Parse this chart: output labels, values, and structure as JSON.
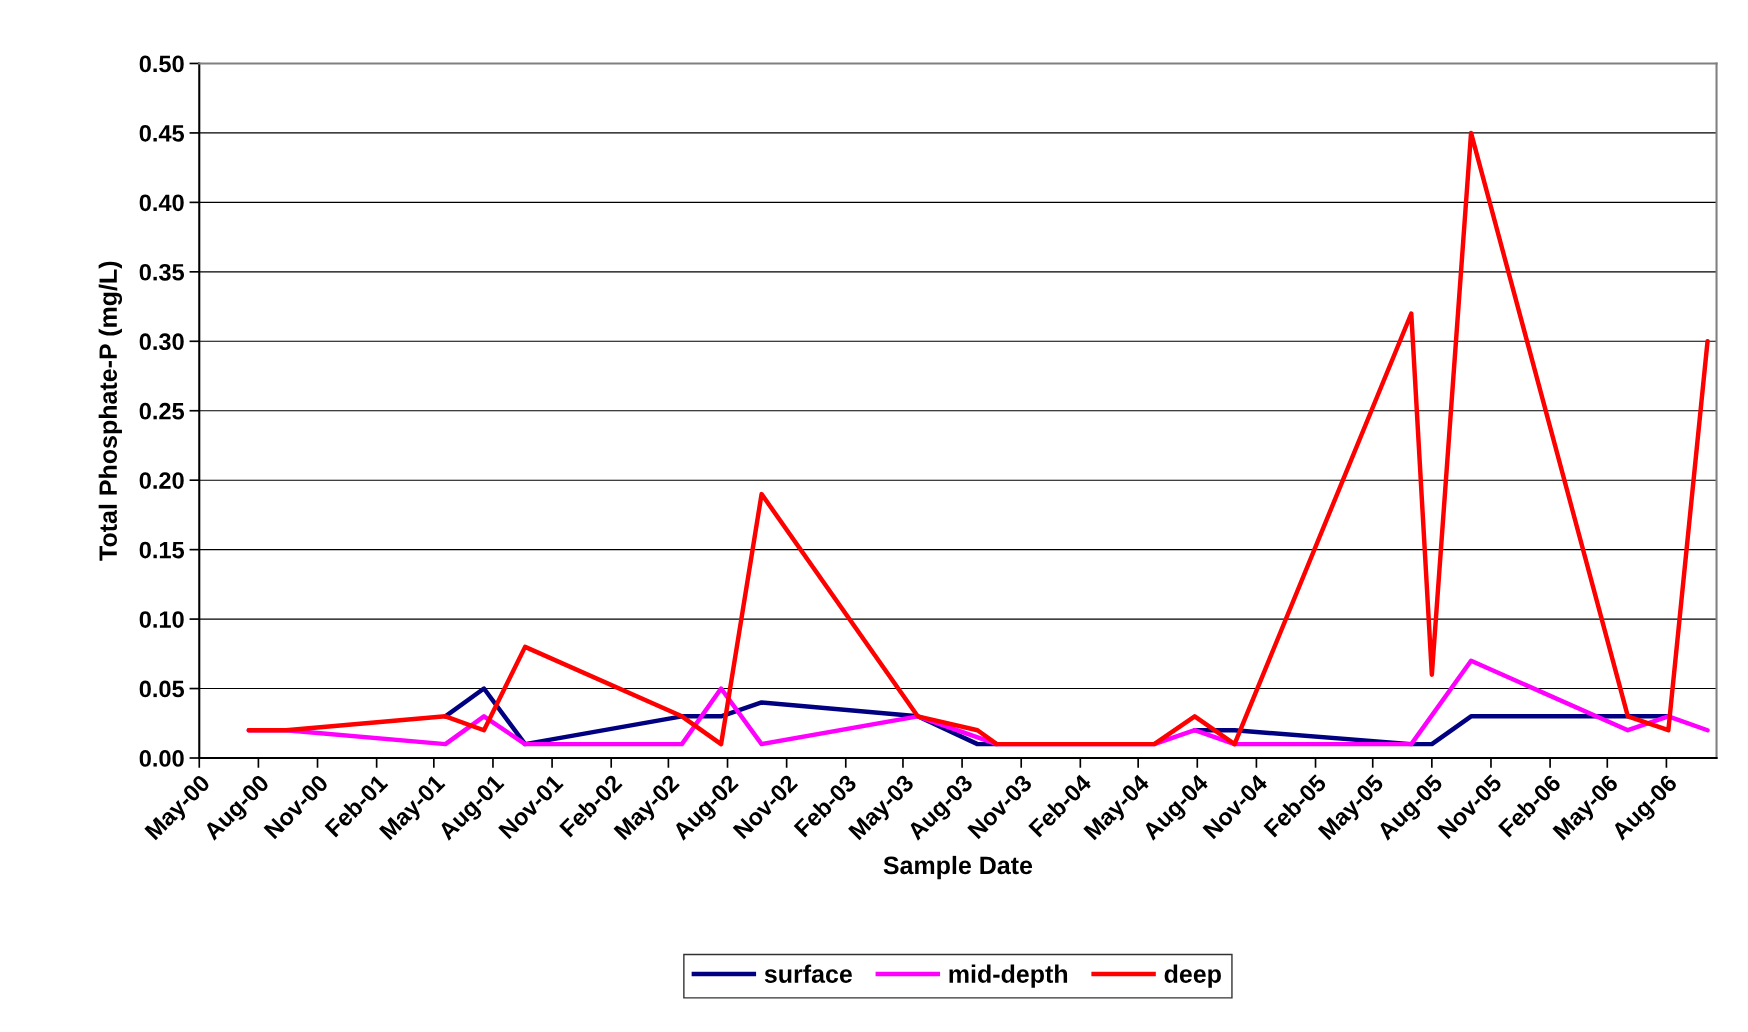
{
  "chart_data": {
    "type": "line",
    "xlabel": "Sample Date",
    "ylabel": "Total Phosphate-P (mg/L)",
    "xlim": [
      "2000-05-01",
      "2006-10-18"
    ],
    "xticks": [
      {
        "value": "2000-05-01",
        "label": "May-00"
      },
      {
        "value": "2000-08-01",
        "label": "Aug-00"
      },
      {
        "value": "2000-11-01",
        "label": "Nov-00"
      },
      {
        "value": "2001-02-01",
        "label": "Feb-01"
      },
      {
        "value": "2001-05-01",
        "label": "May-01"
      },
      {
        "value": "2001-08-01",
        "label": "Aug-01"
      },
      {
        "value": "2001-11-01",
        "label": "Nov-01"
      },
      {
        "value": "2002-02-01",
        "label": "Feb-02"
      },
      {
        "value": "2002-05-01",
        "label": "May-02"
      },
      {
        "value": "2002-08-01",
        "label": "Aug-02"
      },
      {
        "value": "2002-11-01",
        "label": "Nov-02"
      },
      {
        "value": "2003-02-01",
        "label": "Feb-03"
      },
      {
        "value": "2003-05-01",
        "label": "May-03"
      },
      {
        "value": "2003-08-01",
        "label": "Aug-03"
      },
      {
        "value": "2003-11-01",
        "label": "Nov-03"
      },
      {
        "value": "2004-02-01",
        "label": "Feb-04"
      },
      {
        "value": "2004-05-01",
        "label": "May-04"
      },
      {
        "value": "2004-08-01",
        "label": "Aug-04"
      },
      {
        "value": "2004-11-01",
        "label": "Nov-04"
      },
      {
        "value": "2005-02-01",
        "label": "Feb-05"
      },
      {
        "value": "2005-05-01",
        "label": "May-05"
      },
      {
        "value": "2005-08-01",
        "label": "Aug-05"
      },
      {
        "value": "2005-11-01",
        "label": "Nov-05"
      },
      {
        "value": "2006-02-01",
        "label": "Feb-06"
      },
      {
        "value": "2006-05-01",
        "label": "May-06"
      },
      {
        "value": "2006-08-01",
        "label": "Aug-06"
      }
    ],
    "ylim": [
      0,
      0.5
    ],
    "yticks": [
      {
        "value": 0,
        "label": "0.00"
      },
      {
        "value": 0.05,
        "label": "0.05"
      },
      {
        "value": 0.1,
        "label": "0.10"
      },
      {
        "value": 0.15,
        "label": "0.15"
      },
      {
        "value": 0.2,
        "label": "0.20"
      },
      {
        "value": 0.25,
        "label": "0.25"
      },
      {
        "value": 0.3,
        "label": "0.30"
      },
      {
        "value": 0.35,
        "label": "0.35"
      },
      {
        "value": 0.4,
        "label": "0.40"
      },
      {
        "value": 0.45,
        "label": "0.45"
      },
      {
        "value": 0.5,
        "label": "0.50"
      }
    ],
    "grid": "y",
    "legend": "bottom",
    "marker": "none",
    "line_style": "solid",
    "series": [
      {
        "name": "surface",
        "color": "#000080",
        "x": [
          "2001-05-19",
          "2001-07-18",
          "2001-09-20",
          "2002-05-22",
          "2002-07-22",
          "2002-09-23",
          "2003-05-24",
          "2003-08-25",
          "2003-09-24",
          "2004-05-26",
          "2004-07-28",
          "2004-09-28",
          "2005-06-30",
          "2005-08-01",
          "2005-10-01",
          "2006-06-02",
          "2006-08-04"
        ],
        "values": [
          0.03,
          0.05,
          0.01,
          0.03,
          0.03,
          0.04,
          0.03,
          0.01,
          0.01,
          null,
          0.02,
          0.02,
          0.01,
          0.01,
          0.03,
          0.03,
          0.03
        ]
      },
      {
        "name": "mid-depth",
        "color": "#ff00ff",
        "x": [
          "2000-07-17",
          "2000-09-13",
          "2001-05-19",
          "2001-07-18",
          "2001-09-20",
          "2002-05-22",
          "2002-07-22",
          "2002-09-23",
          "2003-05-24",
          "2003-09-24",
          "2004-05-26",
          "2004-07-28",
          "2004-09-28",
          "2005-06-30",
          "2005-10-01",
          "2006-06-02",
          "2006-08-04",
          "2006-10-04"
        ],
        "values": [
          0.02,
          0.02,
          0.01,
          0.03,
          0.01,
          0.01,
          0.05,
          0.01,
          0.03,
          0.01,
          0.01,
          0.02,
          0.01,
          0.01,
          0.07,
          0.02,
          0.03,
          0.02
        ]
      },
      {
        "name": "deep",
        "color": "#ff0000",
        "x": [
          "2000-07-17",
          "2000-09-13",
          "2001-05-19",
          "2001-07-18",
          "2001-09-20",
          "2002-05-22",
          "2002-07-22",
          "2002-09-23",
          "2003-05-24",
          "2003-08-25",
          "2003-09-24",
          "2004-05-26",
          "2004-07-28",
          "2004-09-28",
          "2005-06-30",
          "2005-08-01",
          "2005-10-01",
          "2006-06-02",
          "2006-08-04",
          "2006-10-04"
        ],
        "values": [
          0.02,
          0.02,
          0.03,
          0.02,
          0.08,
          0.03,
          0.01,
          0.19,
          0.03,
          0.02,
          0.01,
          0.01,
          0.03,
          0.01,
          0.32,
          0.06,
          0.45,
          0.03,
          0.02,
          0.3
        ]
      }
    ]
  }
}
